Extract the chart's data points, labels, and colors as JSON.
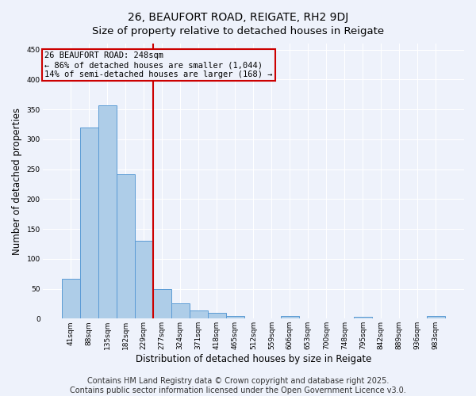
{
  "title1": "26, BEAUFORT ROAD, REIGATE, RH2 9DJ",
  "title2": "Size of property relative to detached houses in Reigate",
  "xlabel": "Distribution of detached houses by size in Reigate",
  "ylabel": "Number of detached properties",
  "categories": [
    "41sqm",
    "88sqm",
    "135sqm",
    "182sqm",
    "229sqm",
    "277sqm",
    "324sqm",
    "371sqm",
    "418sqm",
    "465sqm",
    "512sqm",
    "559sqm",
    "606sqm",
    "653sqm",
    "700sqm",
    "748sqm",
    "795sqm",
    "842sqm",
    "889sqm",
    "936sqm",
    "983sqm"
  ],
  "values": [
    67,
    319,
    357,
    241,
    130,
    50,
    26,
    14,
    9,
    4,
    0,
    0,
    4,
    0,
    0,
    0,
    3,
    0,
    0,
    0,
    4
  ],
  "bar_color": "#aecde8",
  "bar_edge_color": "#5b9bd5",
  "vline_x_idx": 4,
  "vline_color": "#cc0000",
  "annotation_line1": "26 BEAUFORT ROAD: 248sqm",
  "annotation_line2": "← 86% of detached houses are smaller (1,044)",
  "annotation_line3": "14% of semi-detached houses are larger (168) →",
  "annotation_box_color": "#cc0000",
  "ylim": [
    0,
    460
  ],
  "yticks": [
    0,
    50,
    100,
    150,
    200,
    250,
    300,
    350,
    400,
    450
  ],
  "background_color": "#eef2fb",
  "grid_color": "#ffffff",
  "footer_text": "Contains HM Land Registry data © Crown copyright and database right 2025.\nContains public sector information licensed under the Open Government Licence v3.0.",
  "title1_fontsize": 10,
  "title2_fontsize": 9.5,
  "footer_fontsize": 7,
  "annot_fontsize": 7.5,
  "tick_fontsize": 6.5,
  "axis_label_fontsize": 8.5
}
